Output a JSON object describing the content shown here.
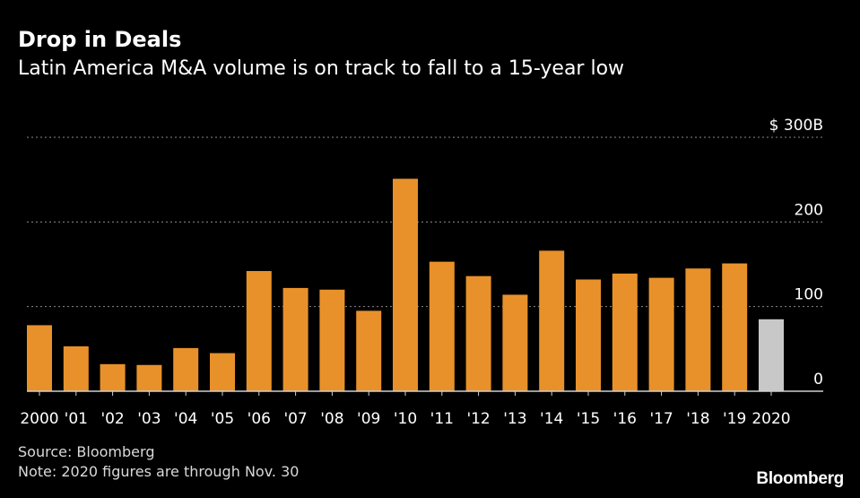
{
  "header": {
    "title": "Drop in Deals",
    "subtitle": "Latin America M&A volume is on track to fall to a 15-year low"
  },
  "footer": {
    "source": "Source: Bloomberg",
    "note": "Note: 2020 figures are through Nov. 30",
    "brand": "Bloomberg"
  },
  "colors": {
    "background": "#000000",
    "bar": "#e8912a",
    "highlight": "#c8c8c8",
    "grid": "#8a8a8a",
    "text": "#ffffff"
  },
  "chart_data": {
    "type": "bar",
    "title": "Drop in Deals",
    "subtitle": "Latin America M&A volume is on track to fall to a 15-year low",
    "xlabel": "",
    "ylabel": "",
    "ylim": [
      0,
      300
    ],
    "yticks": [
      {
        "value": 0,
        "label": "0"
      },
      {
        "value": 100,
        "label": "100"
      },
      {
        "value": 200,
        "label": "200"
      },
      {
        "value": 300,
        "label": "$ 300B"
      }
    ],
    "grid": true,
    "categories": [
      "2000",
      "'01",
      "'02",
      "'03",
      "'04",
      "'05",
      "'06",
      "'07",
      "'08",
      "'09",
      "'10",
      "'11",
      "'12",
      "'13",
      "'14",
      "'15",
      "'16",
      "'17",
      "'18",
      "'19",
      "2020"
    ],
    "values": [
      78,
      53,
      32,
      31,
      51,
      45,
      142,
      122,
      120,
      95,
      251,
      153,
      136,
      114,
      166,
      132,
      139,
      134,
      145,
      151,
      85
    ],
    "highlight_index": 20
  }
}
